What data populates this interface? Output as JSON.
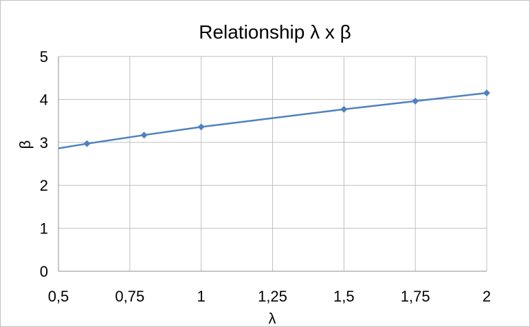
{
  "chart_data": {
    "type": "line",
    "title": "Relationship λ x β",
    "xlabel": "λ",
    "ylabel": "β",
    "xlim": [
      0.5,
      2
    ],
    "ylim": [
      0,
      5
    ],
    "x_ticks": [
      0.5,
      0.75,
      1,
      1.25,
      1.5,
      1.75,
      2
    ],
    "x_tick_labels": [
      "0,5",
      "0,75",
      "1",
      "1,25",
      "1,5",
      "1,75",
      "2"
    ],
    "y_ticks": [
      0,
      1,
      2,
      3,
      4,
      5
    ],
    "y_tick_labels": [
      "0",
      "1",
      "2",
      "3",
      "4",
      "5"
    ],
    "grid": true,
    "series": [
      {
        "color": "#4f81bd",
        "x": [
          0.5,
          0.6,
          0.8,
          1,
          1.5,
          1.75,
          2
        ],
        "y": [
          2.86,
          2.97,
          3.17,
          3.36,
          3.77,
          3.96,
          4.15
        ],
        "markers": [
          false,
          true,
          true,
          true,
          true,
          true,
          true
        ]
      }
    ]
  }
}
